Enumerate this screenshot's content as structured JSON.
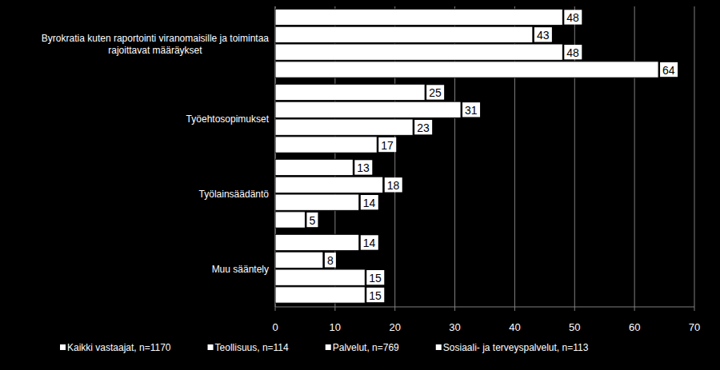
{
  "chart_data": {
    "type": "bar",
    "orientation": "horizontal",
    "categories": [
      "Byrokratia kuten raportointi viranomaisille ja toimintaa rajoittavat määräykset",
      "Työehtosopimukset",
      "Työlainsäädäntö",
      "Muu sääntely"
    ],
    "series": [
      {
        "name": "Kaikki vastaajat, n=1170",
        "color": "#ffffff",
        "values": [
          48,
          25,
          13,
          14
        ]
      },
      {
        "name": "Teollisuus, n=114",
        "color": "#ffffff",
        "values": [
          43,
          31,
          18,
          8
        ]
      },
      {
        "name": "Palvelut, n=769",
        "color": "#ffffff",
        "values": [
          48,
          23,
          14,
          15
        ]
      },
      {
        "name": "Sosiaali- ja terveyspalvelut, n=113",
        "color": "#ffffff",
        "values": [
          64,
          17,
          5,
          15
        ]
      }
    ],
    "xlim": [
      0,
      70
    ],
    "xticks": [
      0,
      10,
      20,
      30,
      40,
      50,
      60,
      70
    ],
    "grid": true,
    "data_labels": true,
    "legend": "bottom"
  }
}
